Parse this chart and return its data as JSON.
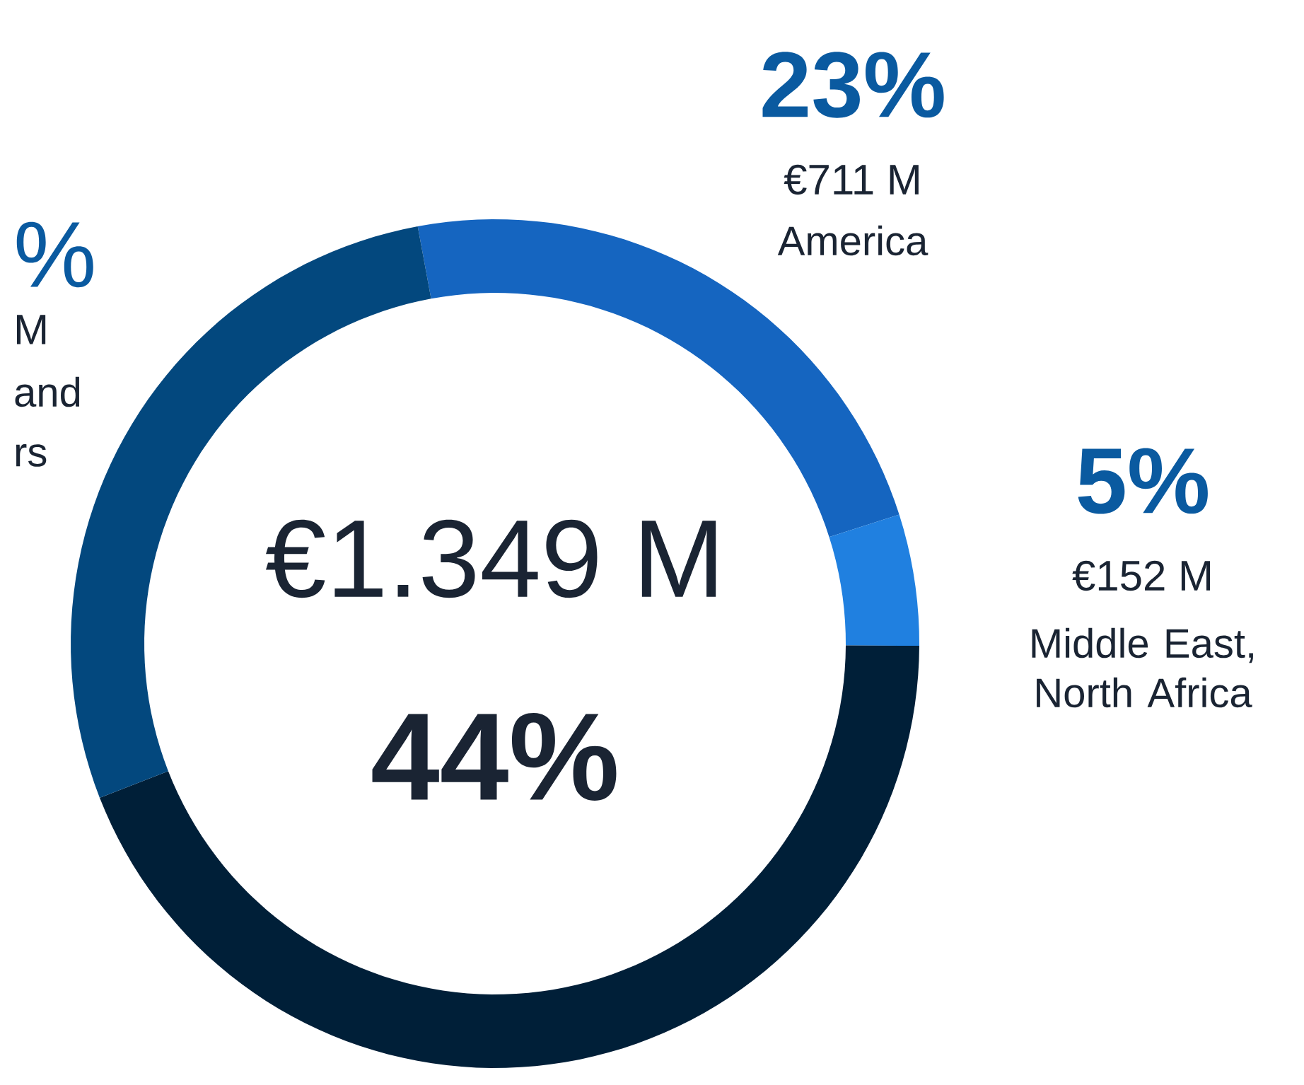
{
  "chart_data": {
    "type": "donut",
    "categories": [
      "America",
      "Middle East, North Africa",
      null,
      null
    ],
    "values": [
      23,
      5,
      44,
      28
    ],
    "colors": [
      "#1565c0",
      "#2080e0",
      "#001f38",
      "#03487e"
    ],
    "value_labels": [
      "23%",
      "5%",
      "44%",
      null
    ],
    "annotations": [
      "€711 M",
      "€152 M",
      "€1.349 M",
      "%",
      "M",
      "and",
      "rs"
    ]
  }
}
